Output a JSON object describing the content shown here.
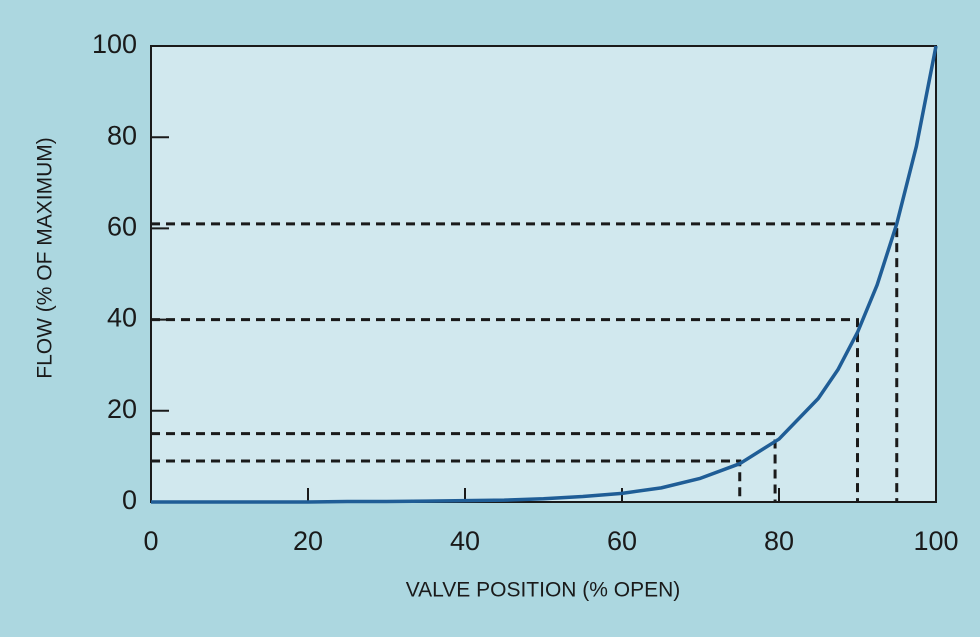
{
  "chart_data": {
    "type": "line",
    "x_label": "VALVE POSITION (% OPEN)",
    "y_label": "FLOW (% OF MAXIMUM)",
    "x": [
      0,
      5,
      10,
      15,
      20,
      25,
      30,
      35,
      40,
      45,
      50,
      55,
      60,
      65,
      70,
      75,
      80,
      85,
      87.5,
      90,
      92.5,
      95,
      97.5,
      100
    ],
    "series": [
      {
        "color": "#1f5d96",
        "values": [
          0,
          0,
          0,
          0,
          0,
          0.1,
          0.1,
          0.2,
          0.3,
          0.4,
          0.7,
          1.2,
          1.9,
          3.1,
          5.2,
          8.4,
          13.8,
          22.7,
          29,
          37.2,
          47.6,
          61,
          78,
          100
        ]
      }
    ],
    "guides": {
      "x": [
        75,
        79.5,
        90,
        95
      ],
      "y": [
        9,
        15,
        40,
        61
      ]
    },
    "xlim": [
      0,
      100
    ],
    "ylim": [
      0,
      100
    ],
    "xticks": [
      0,
      20,
      40,
      60,
      80,
      100
    ],
    "yticks": [
      0,
      20,
      40,
      60,
      80,
      100
    ],
    "grid": false
  }
}
